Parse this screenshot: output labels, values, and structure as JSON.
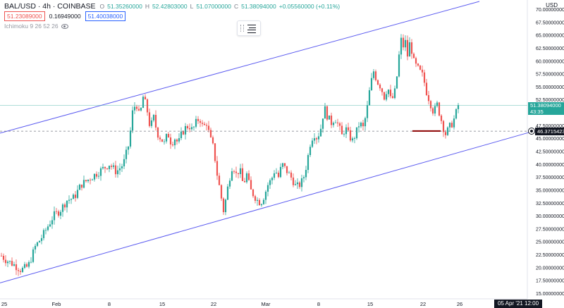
{
  "header": {
    "symbol": "BAL/USD · 4h · COINBASE",
    "ohlc": [
      {
        "key": "O",
        "value": "51.35260000"
      },
      {
        "key": "H",
        "value": "52.42803000"
      },
      {
        "key": "L",
        "value": "51.07000000"
      },
      {
        "key": "C",
        "value": "51.38094000"
      },
      {
        "key": "",
        "value": "+0.05560000 (+0.11%)"
      }
    ],
    "sell_price": "51.23089000",
    "spread": "0.16949000",
    "buy_price": "51.40038000",
    "indicator": "Ichimoku 9 26 52 26"
  },
  "price_axis": {
    "currency": "USD",
    "ticks": [
      "70.00000000",
      "67.50000000",
      "65.00000000",
      "62.50000000",
      "60.00000000",
      "57.50000000",
      "55.00000000",
      "52.50000000",
      "50.00000000",
      "47.50000000",
      "45.00000000",
      "42.50000000",
      "40.00000000",
      "37.50000000",
      "35.00000000",
      "32.50000000",
      "30.00000000",
      "27.50000000",
      "25.00000000",
      "22.50000000",
      "20.00000000",
      "17.50000000",
      "15.00000000"
    ],
    "last_price_label": "51.38094000",
    "countdown": "43:35",
    "crosshair_label": "46.37154232"
  },
  "time_axis": {
    "ticks": [
      "25",
      "Feb",
      "8",
      "15",
      "22",
      "Mar",
      "8",
      "15",
      "22",
      "26"
    ],
    "crosshair_label": "05 Apr '21 12:00"
  },
  "colors": {
    "up": "#26a69a",
    "down": "#ef5350",
    "channel": "#5b5bf0",
    "hline": "#8b0000"
  },
  "chart_data": {
    "type": "candlestick",
    "title": "BAL/USD · 4h · COINBASE",
    "ylim": [
      14,
      71
    ],
    "grid": false,
    "price_path": [
      [
        0,
        22.5
      ],
      [
        8,
        21.5
      ],
      [
        20,
        20.5
      ],
      [
        30,
        19.5
      ],
      [
        40,
        20.2
      ],
      [
        50,
        24
      ],
      [
        60,
        26
      ],
      [
        68,
        28
      ],
      [
        76,
        30
      ],
      [
        85,
        31
      ],
      [
        95,
        33
      ],
      [
        105,
        33.5
      ],
      [
        115,
        36
      ],
      [
        125,
        37
      ],
      [
        135,
        38
      ],
      [
        145,
        39
      ],
      [
        155,
        40
      ],
      [
        165,
        38.5
      ],
      [
        175,
        40
      ],
      [
        183,
        44
      ],
      [
        188,
        50
      ],
      [
        193,
        52
      ],
      [
        198,
        49
      ],
      [
        203,
        53
      ],
      [
        208,
        51
      ],
      [
        213,
        47
      ],
      [
        218,
        49
      ],
      [
        223,
        46
      ],
      [
        228,
        45
      ],
      [
        233,
        44
      ],
      [
        238,
        46
      ],
      [
        243,
        44
      ],
      [
        248,
        45
      ],
      [
        253,
        44
      ],
      [
        258,
        46
      ],
      [
        263,
        47
      ],
      [
        268,
        47.5
      ],
      [
        273,
        46.5
      ],
      [
        278,
        48
      ],
      [
        283,
        49
      ],
      [
        288,
        47
      ],
      [
        293,
        48
      ],
      [
        298,
        45
      ],
      [
        303,
        43
      ],
      [
        308,
        38
      ],
      [
        312,
        35
      ],
      [
        317,
        31
      ],
      [
        320,
        33
      ],
      [
        325,
        37
      ],
      [
        330,
        40
      ],
      [
        335,
        38
      ],
      [
        340,
        39
      ],
      [
        345,
        36
      ],
      [
        350,
        38
      ],
      [
        355,
        35
      ],
      [
        360,
        34
      ],
      [
        365,
        33
      ],
      [
        370,
        32.5
      ],
      [
        375,
        34
      ],
      [
        380,
        36
      ],
      [
        385,
        37
      ],
      [
        390,
        39
      ],
      [
        395,
        37.5
      ],
      [
        400,
        40
      ],
      [
        405,
        39
      ],
      [
        410,
        38
      ],
      [
        415,
        37
      ],
      [
        420,
        35.5
      ],
      [
        425,
        36
      ],
      [
        430,
        37
      ],
      [
        435,
        40
      ],
      [
        440,
        44
      ],
      [
        445,
        46
      ],
      [
        450,
        45
      ],
      [
        455,
        47
      ],
      [
        460,
        51
      ],
      [
        465,
        49
      ],
      [
        470,
        48
      ],
      [
        475,
        49
      ],
      [
        480,
        47.5
      ],
      [
        485,
        45.5
      ],
      [
        490,
        47
      ],
      [
        495,
        45.5
      ],
      [
        500,
        44.5
      ],
      [
        505,
        46
      ],
      [
        510,
        48
      ],
      [
        515,
        47
      ],
      [
        520,
        50
      ],
      [
        525,
        55
      ],
      [
        530,
        58
      ],
      [
        535,
        56
      ],
      [
        540,
        55
      ],
      [
        545,
        53
      ],
      [
        550,
        55
      ],
      [
        555,
        52
      ],
      [
        560,
        54
      ],
      [
        565,
        59
      ],
      [
        568,
        65
      ],
      [
        571,
        62
      ],
      [
        574,
        64.5
      ],
      [
        578,
        61
      ],
      [
        582,
        64
      ],
      [
        586,
        60
      ],
      [
        590,
        59
      ],
      [
        595,
        58
      ],
      [
        600,
        57
      ],
      [
        605,
        54
      ],
      [
        610,
        52
      ],
      [
        615,
        50
      ],
      [
        620,
        51.5
      ],
      [
        625,
        49
      ],
      [
        630,
        46.5
      ],
      [
        633,
        45.5
      ],
      [
        636,
        47
      ],
      [
        640,
        47.5
      ],
      [
        645,
        49
      ],
      [
        650,
        51.4
      ]
    ],
    "annotations": [
      {
        "type": "trendline",
        "from": [
          0,
          46.0
        ],
        "to": [
          680,
          71.5
        ],
        "label": ""
      },
      {
        "type": "trendline",
        "from": [
          0,
          17.0
        ],
        "to": [
          760,
          46.5
        ],
        "label": ""
      },
      {
        "type": "hline",
        "x_from": 585,
        "x_to": 625,
        "y": 46.4
      },
      {
        "type": "dashed_hline",
        "y": 46.37154232
      },
      {
        "type": "hline_last",
        "y": 51.38094
      }
    ]
  }
}
